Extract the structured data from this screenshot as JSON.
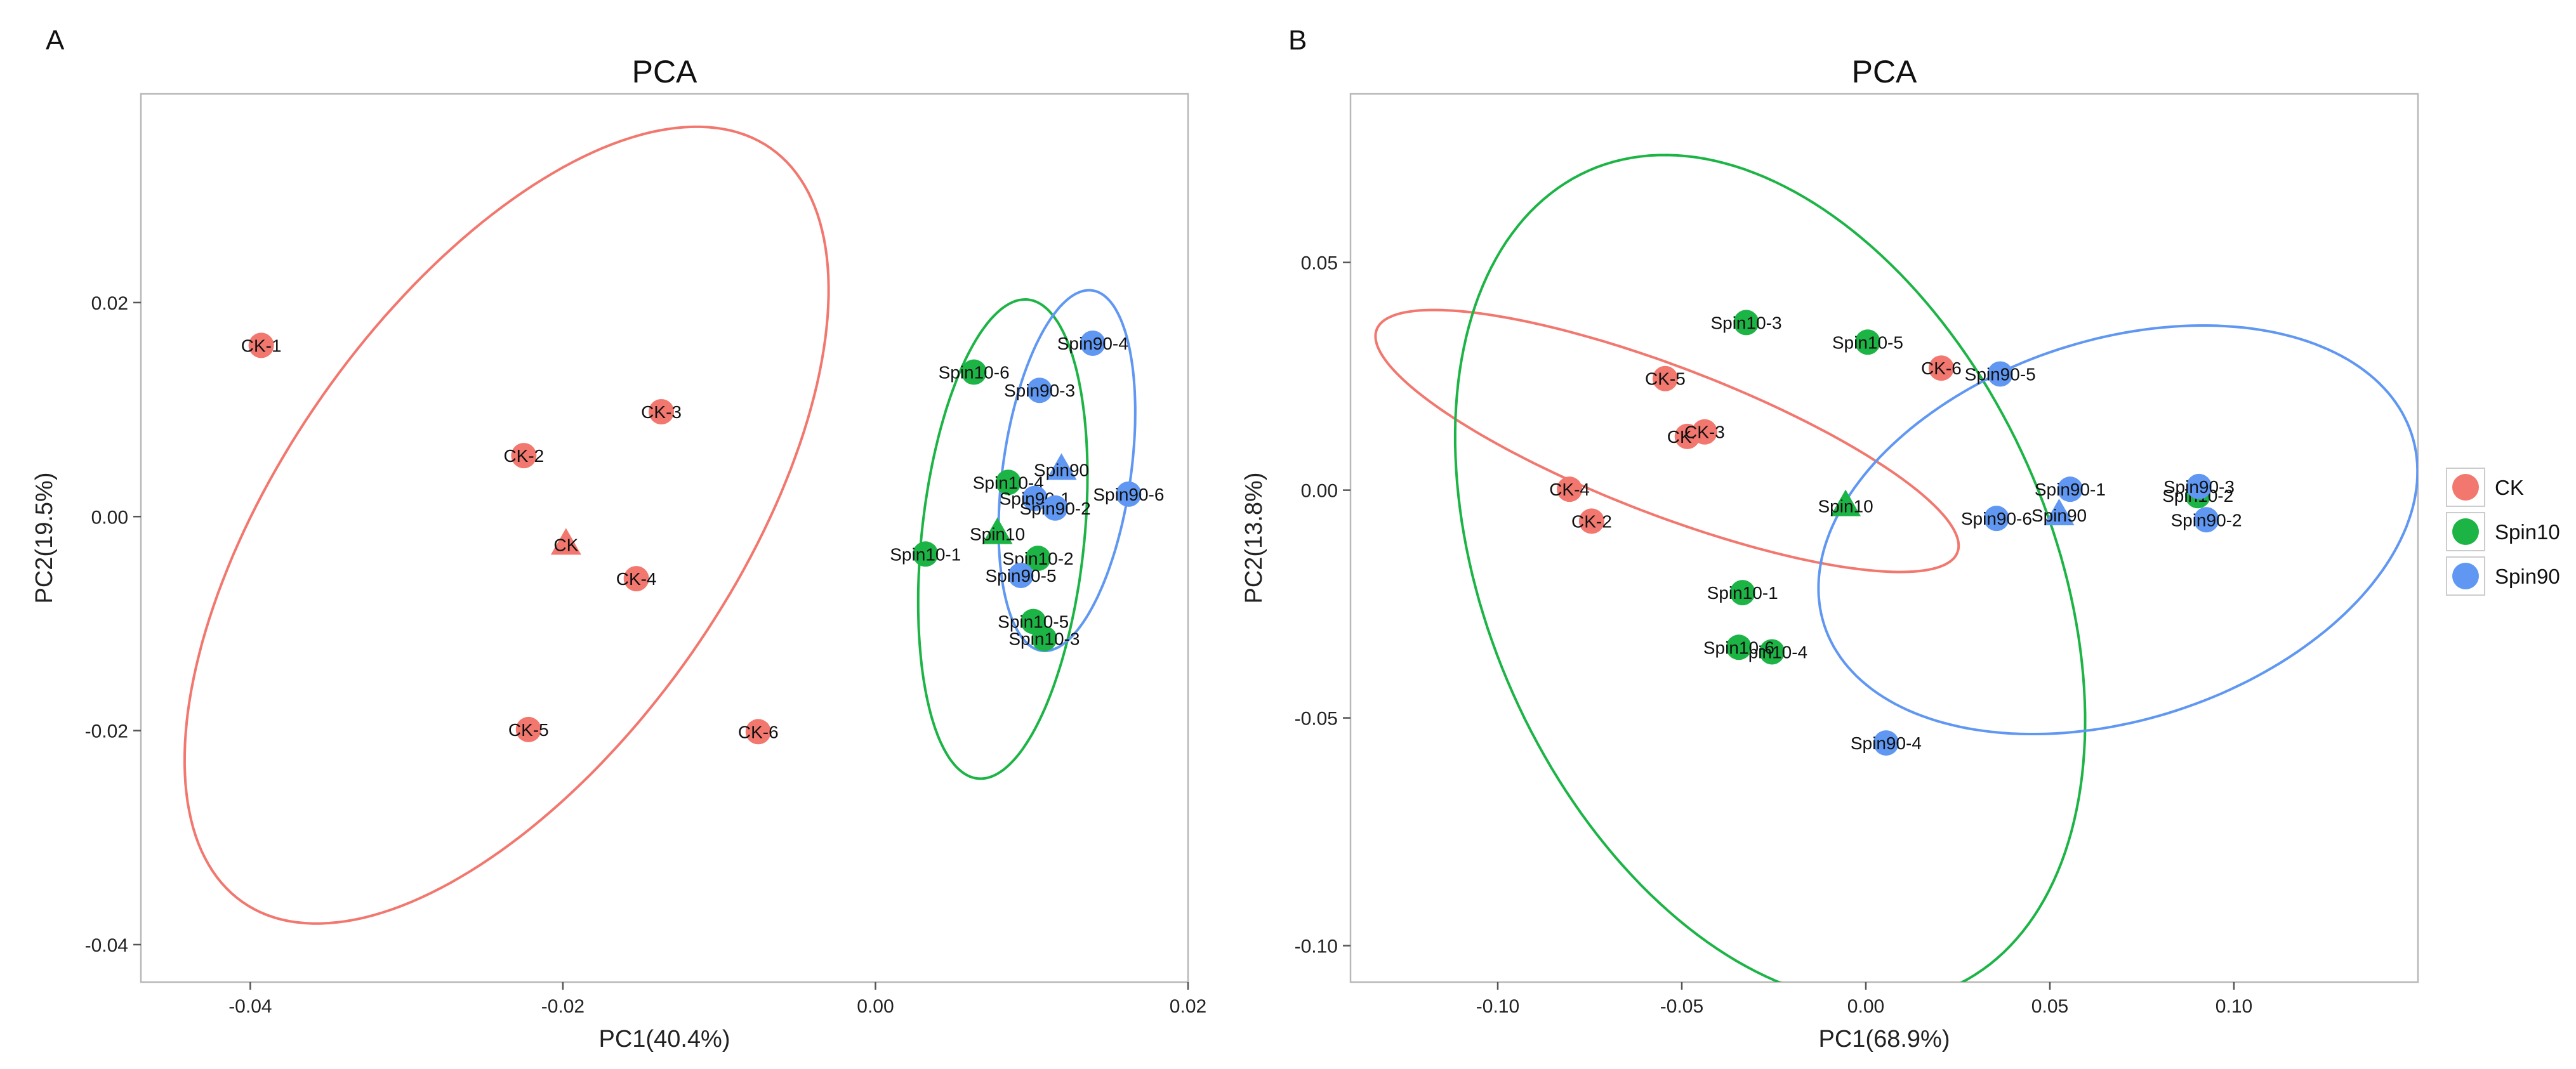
{
  "colors": {
    "CK": "#F2776E",
    "Spin10": "#1DB446",
    "Spin90": "#5F97F2"
  },
  "legend": {
    "entries": [
      "CK",
      "Spin10",
      "Spin90"
    ]
  },
  "chart_data": [
    {
      "panel_tag": "A",
      "type": "scatter",
      "title": "PCA",
      "xlabel": "PC1(40.4%)",
      "ylabel": "PC2(19.5%)",
      "xlim": [
        -0.047,
        0.02
      ],
      "ylim": [
        -0.0435,
        0.0395
      ],
      "xticks": [
        -0.04,
        -0.02,
        0.0,
        0.02
      ],
      "xtick_labels": [
        "-0.04",
        "-0.02",
        "0.00",
        "0.02"
      ],
      "yticks": [
        -0.04,
        -0.02,
        0.0,
        0.02
      ],
      "ytick_labels": [
        "-0.04",
        "-0.02",
        "0.00",
        "0.02"
      ],
      "grid": false,
      "points": [
        {
          "label": "CK-1",
          "group": "CK",
          "x": -0.0393,
          "y": 0.016
        },
        {
          "label": "CK-2",
          "group": "CK",
          "x": -0.0225,
          "y": 0.0057
        },
        {
          "label": "CK-3",
          "group": "CK",
          "x": -0.0137,
          "y": 0.0098
        },
        {
          "label": "CK-4",
          "group": "CK",
          "x": -0.0153,
          "y": -0.0058
        },
        {
          "label": "CK-5",
          "group": "CK",
          "x": -0.0222,
          "y": -0.0199
        },
        {
          "label": "CK-6",
          "group": "CK",
          "x": -0.0075,
          "y": -0.0201
        },
        {
          "label": "Spin10-1",
          "group": "Spin10",
          "x": 0.0032,
          "y": -0.0035
        },
        {
          "label": "Spin10-2",
          "group": "Spin10",
          "x": 0.0104,
          "y": -0.0039
        },
        {
          "label": "Spin10-3",
          "group": "Spin10",
          "x": 0.0108,
          "y": -0.0114
        },
        {
          "label": "Spin10-4",
          "group": "Spin10",
          "x": 0.0085,
          "y": 0.0032
        },
        {
          "label": "Spin10-5",
          "group": "Spin10",
          "x": 0.0101,
          "y": -0.0098
        },
        {
          "label": "Spin10-6",
          "group": "Spin10",
          "x": 0.0063,
          "y": 0.0135
        },
        {
          "label": "Spin90-1",
          "group": "Spin90",
          "x": 0.0102,
          "y": 0.0017
        },
        {
          "label": "Spin90-2",
          "group": "Spin90",
          "x": 0.0115,
          "y": 0.0008
        },
        {
          "label": "Spin90-3",
          "group": "Spin90",
          "x": 0.0105,
          "y": 0.0118
        },
        {
          "label": "Spin90-4",
          "group": "Spin90",
          "x": 0.0139,
          "y": 0.0162
        },
        {
          "label": "Spin90-5",
          "group": "Spin90",
          "x": 0.0093,
          "y": -0.0055
        },
        {
          "label": "Spin90-6",
          "group": "Spin90",
          "x": 0.0162,
          "y": 0.0021
        }
      ],
      "centroids": [
        {
          "label": "CK",
          "group": "CK",
          "x": -0.0198,
          "y": -0.0025
        },
        {
          "label": "Spin10",
          "group": "Spin10",
          "x": 0.0078,
          "y": -0.0015
        },
        {
          "label": "Spin90",
          "group": "Spin90",
          "x": 0.0119,
          "y": 0.0045
        }
      ],
      "ellipses": [
        {
          "group": "CK",
          "cx": -0.0236,
          "cy": -0.0008,
          "rx": 0.0144,
          "ry": 0.043,
          "rotation_deg": -35
        },
        {
          "group": "Spin10",
          "cx": 0.00815,
          "cy": -0.0021,
          "rx": 0.0052,
          "ry": 0.0225,
          "rotation_deg": -6
        },
        {
          "group": "Spin90",
          "cx": 0.01225,
          "cy": 0.0043,
          "rx": 0.0041,
          "ry": 0.017,
          "rotation_deg": -8
        }
      ]
    },
    {
      "panel_tag": "B",
      "type": "scatter",
      "title": "PCA",
      "xlabel": "PC1(68.9%)",
      "ylabel": "PC2(13.8%)",
      "xlim": [
        -0.14,
        0.15
      ],
      "ylim": [
        -0.108,
        0.087
      ],
      "xticks": [
        -0.1,
        -0.05,
        0.0,
        0.05,
        0.1
      ],
      "xtick_labels": [
        "-0.10",
        "-0.05",
        "0.00",
        "0.05",
        "0.10"
      ],
      "yticks": [
        -0.1,
        -0.05,
        0.0,
        0.05
      ],
      "ytick_labels": [
        "-0.10",
        "-0.05",
        "0.00",
        "0.05"
      ],
      "grid": false,
      "points": [
        {
          "label": "CK-1",
          "group": "CK",
          "x": -0.0485,
          "y": 0.0118
        },
        {
          "label": "CK-2",
          "group": "CK",
          "x": -0.0745,
          "y": -0.0068
        },
        {
          "label": "CK-3",
          "group": "CK",
          "x": -0.0438,
          "y": 0.0128
        },
        {
          "label": "CK-4",
          "group": "CK",
          "x": -0.0805,
          "y": 0.0002
        },
        {
          "label": "CK-5",
          "group": "CK",
          "x": -0.0545,
          "y": 0.0245
        },
        {
          "label": "CK-6",
          "group": "CK",
          "x": 0.0205,
          "y": 0.0268
        },
        {
          "label": "Spin10-1",
          "group": "Spin10",
          "x": -0.0335,
          "y": -0.0225
        },
        {
          "label": "Spin10-2",
          "group": "Spin10",
          "x": 0.0902,
          "y": -0.0012
        },
        {
          "label": "Spin10-3",
          "group": "Spin10",
          "x": -0.0325,
          "y": 0.0368
        },
        {
          "label": "Spin10-4",
          "group": "Spin10",
          "x": -0.0255,
          "y": -0.0355
        },
        {
          "label": "Spin10-5",
          "group": "Spin10",
          "x": 0.0005,
          "y": 0.0325
        },
        {
          "label": "Spin10-6",
          "group": "Spin10",
          "x": -0.0345,
          "y": -0.0345
        },
        {
          "label": "Spin90-1",
          "group": "Spin90",
          "x": 0.0555,
          "y": 0.0002
        },
        {
          "label": "Spin90-2",
          "group": "Spin90",
          "x": 0.0925,
          "y": -0.0065
        },
        {
          "label": "Spin90-3",
          "group": "Spin90",
          "x": 0.0905,
          "y": 0.0008
        },
        {
          "label": "Spin90-4",
          "group": "Spin90",
          "x": 0.0055,
          "y": -0.0555
        },
        {
          "label": "Spin90-5",
          "group": "Spin90",
          "x": 0.0365,
          "y": 0.0255
        },
        {
          "label": "Spin90-6",
          "group": "Spin90",
          "x": 0.0355,
          "y": -0.0062
        }
      ],
      "centroids": [
        {
          "label": "Spin10",
          "group": "Spin10",
          "x": -0.0055,
          "y": -0.0032
        },
        {
          "label": "Spin90",
          "group": "Spin90",
          "x": 0.0525,
          "y": -0.0052
        }
      ],
      "ellipses": [
        {
          "group": "CK",
          "cx": -0.054,
          "cy": 0.0108,
          "rx": 0.0845,
          "ry": 0.0162,
          "rotation_deg": -21
        },
        {
          "group": "Spin10",
          "cx": -0.026,
          "cy": -0.0195,
          "rx": 0.0765,
          "ry": 0.0981,
          "rotation_deg": 24
        },
        {
          "group": "Spin90",
          "cx": 0.0685,
          "cy": -0.0087,
          "rx": 0.0839,
          "ry": 0.0417,
          "rotation_deg": 18
        }
      ]
    }
  ]
}
